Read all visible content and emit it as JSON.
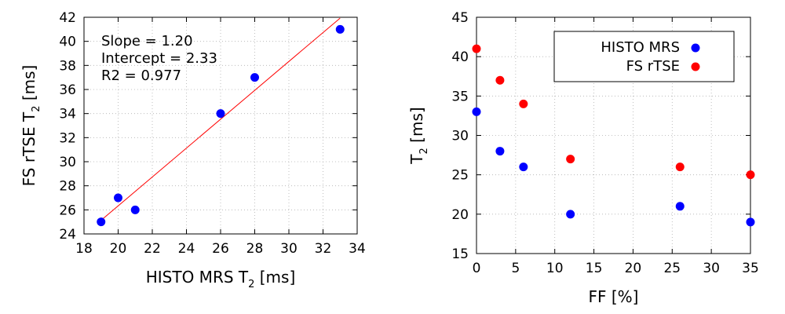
{
  "chart_data": [
    {
      "type": "scatter",
      "xlabel": "HISTO MRS T",
      "xlabel_sub": "2",
      "xlabel_suffix": " [ms]",
      "ylabel": "FS rTSE T",
      "ylabel_sub": "2",
      "ylabel_suffix": " [ms]",
      "xlim": [
        18,
        34
      ],
      "ylim": [
        24,
        42
      ],
      "xticks": [
        18,
        20,
        22,
        24,
        26,
        28,
        30,
        32,
        34
      ],
      "yticks": [
        24,
        26,
        28,
        30,
        32,
        34,
        36,
        38,
        40,
        42
      ],
      "grid": true,
      "series": [
        {
          "color": "#0000ff",
          "x": [
            19,
            20,
            21,
            26,
            28,
            33
          ],
          "y": [
            25,
            27,
            26,
            34,
            37,
            41
          ]
        }
      ],
      "fit_line": {
        "color": "#ff0000",
        "slope": 1.2,
        "intercept": 2.33,
        "x_range": [
          19,
          33
        ]
      },
      "annotations": [
        "Slope = 1.20",
        "Intercept = 2.33",
        "R2 = 0.977"
      ],
      "annotation_position": "top-left"
    },
    {
      "type": "scatter",
      "xlabel": "FF [%]",
      "ylabel": "T",
      "ylabel_sub": "2",
      "ylabel_suffix": " [ms]",
      "xlim": [
        0,
        35
      ],
      "ylim": [
        15,
        45
      ],
      "xticks": [
        0,
        5,
        10,
        15,
        20,
        25,
        30,
        35
      ],
      "yticks": [
        15,
        20,
        25,
        30,
        35,
        40,
        45
      ],
      "grid": true,
      "legend_position": "top-right",
      "series": [
        {
          "name": "HISTO MRS",
          "color": "#0000ff",
          "x": [
            0,
            3,
            6,
            12,
            26,
            35
          ],
          "y": [
            33,
            28,
            26,
            20,
            21,
            19
          ]
        },
        {
          "name": "FS rTSE",
          "color": "#ff0000",
          "x": [
            0,
            3,
            6,
            12,
            26,
            35
          ],
          "y": [
            41,
            37,
            34,
            27,
            26,
            25
          ]
        }
      ]
    }
  ]
}
